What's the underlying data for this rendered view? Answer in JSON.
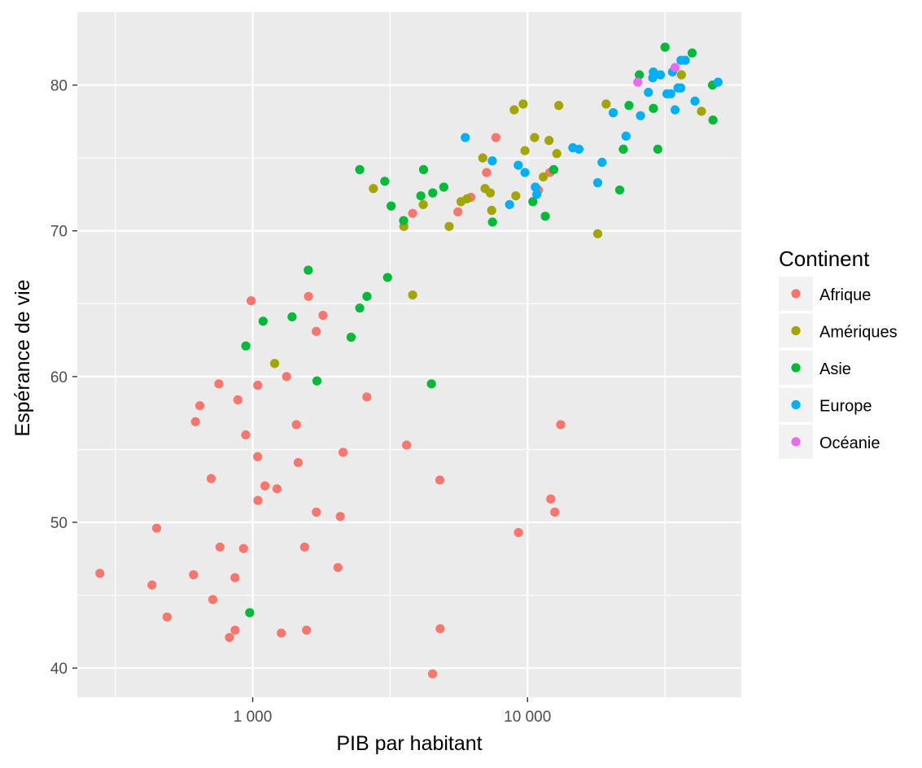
{
  "chart_data": {
    "type": "scatter",
    "title": "",
    "xlabel": "PIB par habitant",
    "ylabel": "Espérance de vie",
    "x_scale": "log10",
    "xlim": [
      230,
      60000
    ],
    "ylim": [
      38,
      85
    ],
    "x_ticks": [
      {
        "value": 1000,
        "label": "1 000"
      },
      {
        "value": 10000,
        "label": "10 000"
      }
    ],
    "y_ticks": [
      {
        "value": 40,
        "label": "40"
      },
      {
        "value": 50,
        "label": "50"
      },
      {
        "value": 60,
        "label": "60"
      },
      {
        "value": 70,
        "label": "70"
      },
      {
        "value": 80,
        "label": "80"
      }
    ],
    "grid": true,
    "legend": {
      "title": "Continent",
      "position": "right"
    },
    "series": [
      {
        "name": "Afrique",
        "color": "#F8766D",
        "points": [
          [
            278,
            46.5
          ],
          [
            430,
            45.7
          ],
          [
            447,
            49.6
          ],
          [
            488,
            43.5
          ],
          [
            609,
            46.4
          ],
          [
            619,
            56.9
          ],
          [
            642,
            58.0
          ],
          [
            706,
            53.0
          ],
          [
            716,
            44.7
          ],
          [
            753,
            59.5
          ],
          [
            760,
            48.3
          ],
          [
            823,
            42.1
          ],
          [
            863,
            42.6
          ],
          [
            862,
            46.2
          ],
          [
            883,
            58.4
          ],
          [
            926,
            48.2
          ],
          [
            943,
            56.0
          ],
          [
            987,
            65.2
          ],
          [
            1043,
            59.4
          ],
          [
            1045,
            51.5
          ],
          [
            1042,
            54.5
          ],
          [
            1108,
            52.5
          ],
          [
            1226,
            52.3
          ],
          [
            1271,
            42.4
          ],
          [
            1328,
            60.0
          ],
          [
            1442,
            56.7
          ],
          [
            1464,
            54.1
          ],
          [
            1545,
            48.3
          ],
          [
            1570,
            42.6
          ],
          [
            1596,
            65.5
          ],
          [
            1703,
            63.1
          ],
          [
            1705,
            50.7
          ],
          [
            1803,
            64.2
          ],
          [
            2042,
            46.9
          ],
          [
            2083,
            50.4
          ],
          [
            2132,
            54.8
          ],
          [
            2602,
            58.6
          ],
          [
            3632,
            55.3
          ],
          [
            3820,
            71.2
          ],
          [
            4513,
            39.6
          ],
          [
            4797,
            52.9
          ],
          [
            4811,
            42.7
          ],
          [
            5581,
            71.3
          ],
          [
            6223,
            72.3
          ],
          [
            7092,
            74.0
          ],
          [
            7670,
            76.4
          ],
          [
            9270,
            49.3
          ],
          [
            10957,
            72.8
          ],
          [
            12057,
            74.0
          ],
          [
            12154,
            51.6
          ],
          [
            12570,
            50.7
          ],
          [
            13206,
            56.7
          ]
        ]
      },
      {
        "name": "Amériques",
        "color": "#A3A500",
        "points": [
          [
            1202,
            60.9
          ],
          [
            2749,
            72.9
          ],
          [
            3548,
            70.3
          ],
          [
            3820,
            65.6
          ],
          [
            4173,
            71.8
          ],
          [
            5186,
            70.3
          ],
          [
            5728,
            72.0
          ],
          [
            6025,
            72.2
          ],
          [
            6874,
            75.0
          ],
          [
            7006,
            72.9
          ],
          [
            7321,
            72.6
          ],
          [
            7408,
            71.4
          ],
          [
            8948,
            78.3
          ],
          [
            9066,
            72.4
          ],
          [
            9645,
            78.7
          ],
          [
            9787,
            75.5
          ],
          [
            10611,
            76.4
          ],
          [
            11415,
            73.7
          ],
          [
            11978,
            76.2
          ],
          [
            12779,
            75.3
          ],
          [
            12997,
            78.6
          ],
          [
            18008,
            69.8
          ],
          [
            19329,
            78.7
          ],
          [
            36319,
            80.7
          ],
          [
            42952,
            78.2
          ]
        ]
      },
      {
        "name": "Asie",
        "color": "#00BA38",
        "points": [
          [
            944,
            62.1
          ],
          [
            975,
            43.8
          ],
          [
            1091,
            63.8
          ],
          [
            1391,
            64.1
          ],
          [
            1593,
            67.3
          ],
          [
            1713,
            59.7
          ],
          [
            2281,
            62.7
          ],
          [
            2452,
            74.2
          ],
          [
            2452,
            64.7
          ],
          [
            2605,
            65.5
          ],
          [
            3025,
            73.4
          ],
          [
            3095,
            66.8
          ],
          [
            3190,
            71.7
          ],
          [
            3541,
            70.7
          ],
          [
            4091,
            72.4
          ],
          [
            4185,
            74.2
          ],
          [
            4471,
            59.5
          ],
          [
            4519,
            72.6
          ],
          [
            4959,
            73.0
          ],
          [
            7458,
            70.6
          ],
          [
            10461,
            72.0
          ],
          [
            11606,
            71.0
          ],
          [
            12452,
            74.2
          ],
          [
            21655,
            72.8
          ],
          [
            22316,
            75.6
          ],
          [
            23404,
            78.6
          ],
          [
            25523,
            80.7
          ],
          [
            28718,
            78.4
          ],
          [
            29796,
            75.6
          ],
          [
            31656,
            82.6
          ],
          [
            39725,
            82.2
          ],
          [
            47143,
            80.0
          ],
          [
            47307,
            77.6
          ]
        ]
      },
      {
        "name": "Europe",
        "color": "#00B0F6",
        "points": [
          [
            5937,
            76.4
          ],
          [
            7446,
            74.8
          ],
          [
            8605,
            71.8
          ],
          [
            9254,
            74.5
          ],
          [
            9787,
            74.0
          ],
          [
            10681,
            73.0
          ],
          [
            10808,
            72.5
          ],
          [
            14619,
            75.7
          ],
          [
            15390,
            75.6
          ],
          [
            18009,
            73.3
          ],
          [
            18679,
            74.7
          ],
          [
            20510,
            78.1
          ],
          [
            22833,
            76.5
          ],
          [
            25768,
            77.9
          ],
          [
            27538,
            79.5
          ],
          [
            28569,
            80.5
          ],
          [
            28693,
            80.9
          ],
          [
            30470,
            80.7
          ],
          [
            32170,
            79.4
          ],
          [
            33207,
            79.4
          ],
          [
            33693,
            80.9
          ],
          [
            34435,
            78.3
          ],
          [
            35278,
            79.8
          ],
          [
            36126,
            79.8
          ],
          [
            36181,
            81.7
          ],
          [
            37506,
            81.7
          ],
          [
            40676,
            78.9
          ],
          [
            49357,
            80.2
          ]
        ]
      },
      {
        "name": "Océanie",
        "color": "#E76BF3",
        "points": [
          [
            25185,
            80.2
          ],
          [
            34435,
            81.2
          ]
        ]
      }
    ]
  }
}
